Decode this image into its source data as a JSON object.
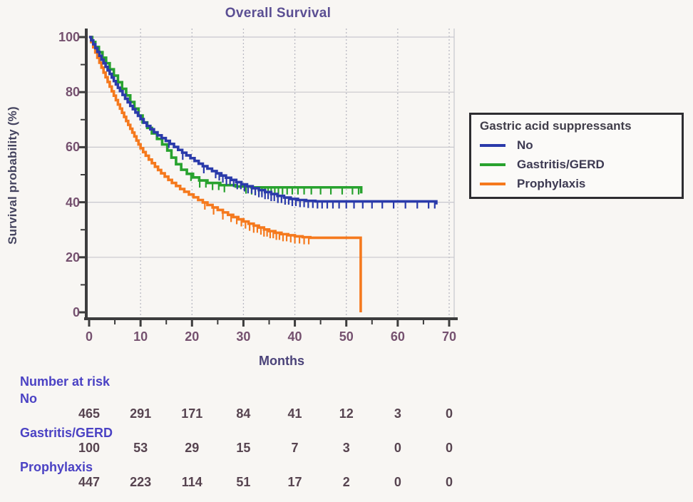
{
  "chart_data": {
    "type": "line",
    "subtype": "kaplan-meier-step",
    "title": "Overall Survival",
    "xlabel": "Months",
    "ylabel": "Survival probability (%)",
    "xlim": [
      0,
      70
    ],
    "ylim": [
      0,
      100
    ],
    "x_ticks": [
      0,
      10,
      20,
      30,
      40,
      50,
      60,
      70
    ],
    "y_ticks": [
      0,
      20,
      40,
      60,
      80,
      100
    ],
    "grid": "on",
    "legend": {
      "title": "Gastric acid suppressants",
      "position": "right"
    },
    "series": [
      {
        "name": "No",
        "color": "#2a3aaa",
        "points": [
          [
            0,
            100
          ],
          [
            0.4,
            98.8
          ],
          [
            0.8,
            97.4
          ],
          [
            1.2,
            96
          ],
          [
            1.6,
            94.6
          ],
          [
            2,
            93.2
          ],
          [
            2.4,
            91.8
          ],
          [
            2.8,
            90.5
          ],
          [
            3.2,
            89.2
          ],
          [
            3.6,
            87.9
          ],
          [
            4,
            86.6
          ],
          [
            4.4,
            85.3
          ],
          [
            4.8,
            84
          ],
          [
            5.2,
            82.8
          ],
          [
            5.6,
            81.6
          ],
          [
            6,
            80.4
          ],
          [
            6.5,
            79
          ],
          [
            7,
            77.6
          ],
          [
            7.5,
            76.3
          ],
          [
            8,
            75
          ],
          [
            8.5,
            73.8
          ],
          [
            9,
            72.6
          ],
          [
            9.5,
            71.4
          ],
          [
            10,
            70.2
          ],
          [
            10.6,
            68.9
          ],
          [
            11.2,
            67.7
          ],
          [
            11.9,
            66.5
          ],
          [
            12.6,
            65.4
          ],
          [
            13.3,
            64.3
          ],
          [
            14.1,
            63.3
          ],
          [
            14.9,
            62.3
          ],
          [
            15.7,
            61.2
          ],
          [
            16.5,
            60.1
          ],
          [
            17.3,
            59
          ],
          [
            18.1,
            58
          ],
          [
            18.9,
            57
          ],
          [
            19.7,
            56
          ],
          [
            20.5,
            55
          ],
          [
            21.3,
            54
          ],
          [
            22.1,
            53.1
          ],
          [
            23,
            52.2
          ],
          [
            23.9,
            51.3
          ],
          [
            24.8,
            50.5
          ],
          [
            25.7,
            49.7
          ],
          [
            26.6,
            48.9
          ],
          [
            27.6,
            48.1
          ],
          [
            28.6,
            47.3
          ],
          [
            29.6,
            46.5
          ],
          [
            30.7,
            45.8
          ],
          [
            31.8,
            45.1
          ],
          [
            33,
            44.4
          ],
          [
            34.2,
            43.7
          ],
          [
            35.4,
            43
          ],
          [
            36.6,
            42.3
          ],
          [
            37.9,
            41.7
          ],
          [
            39.2,
            41.2
          ],
          [
            40.6,
            40.8
          ],
          [
            42.2,
            40.5
          ],
          [
            44,
            40.3
          ],
          [
            67.5,
            39.2
          ]
        ],
        "censor_ticks": [
          15.5,
          18.2,
          22.3,
          24.6,
          25.3,
          26,
          26.7,
          27.4,
          28.1,
          28.8,
          29.5,
          30.2,
          30.9,
          31.6,
          32.3,
          33,
          33.6,
          34.2,
          34.8,
          35.4,
          36,
          36.7,
          37.4,
          38.1,
          38.8,
          39.5,
          40.2,
          41,
          41.8,
          42.6,
          43.5,
          44.4,
          45.3,
          46.3,
          47.4,
          48.6,
          50,
          51.5,
          53.2,
          55,
          57,
          59.2,
          61.5,
          63.8,
          66,
          67.2
        ]
      },
      {
        "name": "Gastritis/GERD",
        "color": "#28a22e",
        "points": [
          [
            0,
            100
          ],
          [
            0.6,
            98.2
          ],
          [
            1.2,
            96.4
          ],
          [
            1.9,
            94.5
          ],
          [
            2.6,
            92.5
          ],
          [
            3.3,
            90.5
          ],
          [
            4,
            88.3
          ],
          [
            4.8,
            86
          ],
          [
            5.6,
            83.6
          ],
          [
            6.4,
            81.2
          ],
          [
            7.2,
            78.8
          ],
          [
            8,
            76.4
          ],
          [
            8.8,
            74
          ],
          [
            9.6,
            71.5
          ],
          [
            10.4,
            69
          ],
          [
            11.3,
            67
          ],
          [
            12.2,
            65
          ],
          [
            13.2,
            63
          ],
          [
            14.2,
            61
          ],
          [
            15.2,
            58.8
          ],
          [
            16,
            56.2
          ],
          [
            16.9,
            53.8
          ],
          [
            17.9,
            51.8
          ],
          [
            19,
            50.3
          ],
          [
            20.2,
            49
          ],
          [
            21.4,
            47.9
          ],
          [
            23,
            47
          ],
          [
            25.5,
            46.2
          ],
          [
            28.5,
            45.7
          ],
          [
            31.5,
            45.4
          ],
          [
            52.6,
            45.4
          ],
          [
            52.9,
            43.2
          ]
        ],
        "censor_ticks": [
          19.8,
          21.5,
          22.7,
          24,
          25.2,
          26.3,
          30.5,
          31.6,
          32.3,
          33,
          33.6,
          34.2,
          34.8,
          35.4,
          36.1,
          36.8,
          37.6,
          38.5,
          39.5,
          40.6,
          41.8,
          43.2,
          45,
          47,
          49.2,
          51.2,
          52.4
        ]
      },
      {
        "name": "Prophylaxis",
        "color": "#f5791d",
        "points": [
          [
            0,
            100
          ],
          [
            0.4,
            98.2
          ],
          [
            0.8,
            96.3
          ],
          [
            1.2,
            94.4
          ],
          [
            1.6,
            92.5
          ],
          [
            2,
            90.7
          ],
          [
            2.4,
            88.9
          ],
          [
            2.8,
            87.1
          ],
          [
            3.2,
            85.4
          ],
          [
            3.6,
            83.7
          ],
          [
            4,
            82
          ],
          [
            4.4,
            80.3
          ],
          [
            4.8,
            78.7
          ],
          [
            5.2,
            77.1
          ],
          [
            5.6,
            75.5
          ],
          [
            6,
            74
          ],
          [
            6.4,
            72.5
          ],
          [
            6.8,
            71
          ],
          [
            7.2,
            69.5
          ],
          [
            7.6,
            68.1
          ],
          [
            8,
            66.7
          ],
          [
            8.4,
            65.3
          ],
          [
            8.8,
            63.9
          ],
          [
            9.2,
            62.4
          ],
          [
            9.6,
            61
          ],
          [
            10,
            59.6
          ],
          [
            10.5,
            58.2
          ],
          [
            11,
            56.9
          ],
          [
            11.6,
            55.5
          ],
          [
            12.2,
            54.2
          ],
          [
            12.8,
            52.9
          ],
          [
            13.4,
            51.7
          ],
          [
            14,
            50.5
          ],
          [
            14.7,
            49.3
          ],
          [
            15.4,
            48.1
          ],
          [
            16.1,
            47
          ],
          [
            16.9,
            45.9
          ],
          [
            17.7,
            44.8
          ],
          [
            18.5,
            43.8
          ],
          [
            19.4,
            42.8
          ],
          [
            20.3,
            41.8
          ],
          [
            21.2,
            40.8
          ],
          [
            22.1,
            39.9
          ],
          [
            23,
            39
          ],
          [
            24,
            38.1
          ],
          [
            25,
            37.2
          ],
          [
            26,
            36.3
          ],
          [
            27,
            35.4
          ],
          [
            28,
            34.6
          ],
          [
            29,
            33.8
          ],
          [
            30,
            33
          ],
          [
            31,
            32.2
          ],
          [
            32,
            31.5
          ],
          [
            33,
            30.8
          ],
          [
            34,
            30.1
          ],
          [
            35,
            29.5
          ],
          [
            36.2,
            28.9
          ],
          [
            37.4,
            28.4
          ],
          [
            38.7,
            28
          ],
          [
            40,
            27.6
          ],
          [
            41.5,
            27.3
          ],
          [
            43,
            27.1
          ],
          [
            52.8,
            0
          ]
        ],
        "censor_ticks": [
          22.5,
          24.2,
          26,
          27.6,
          28.7,
          29.6,
          30.4,
          31.2,
          32,
          32.7,
          33.4,
          34,
          34.6,
          35.2,
          35.8,
          36.4,
          37,
          37.7,
          38.4,
          39.2,
          40,
          40.9,
          41.8,
          42.7
        ]
      }
    ],
    "number_at_risk": {
      "header": "Number at risk",
      "times": [
        0,
        10,
        20,
        30,
        40,
        50,
        60,
        70
      ],
      "groups": [
        {
          "label": "No",
          "counts": [
            465,
            291,
            171,
            84,
            41,
            12,
            3,
            0
          ]
        },
        {
          "label": "Gastritis/GERD",
          "counts": [
            100,
            53,
            29,
            15,
            7,
            3,
            0,
            0
          ]
        },
        {
          "label": "Prophylaxis",
          "counts": [
            447,
            223,
            114,
            51,
            17,
            2,
            0,
            0
          ]
        }
      ]
    }
  },
  "style_colors": {
    "axis": "#3d3d3d",
    "grid": "#c7c7cd",
    "background": "#f8f6f3"
  }
}
